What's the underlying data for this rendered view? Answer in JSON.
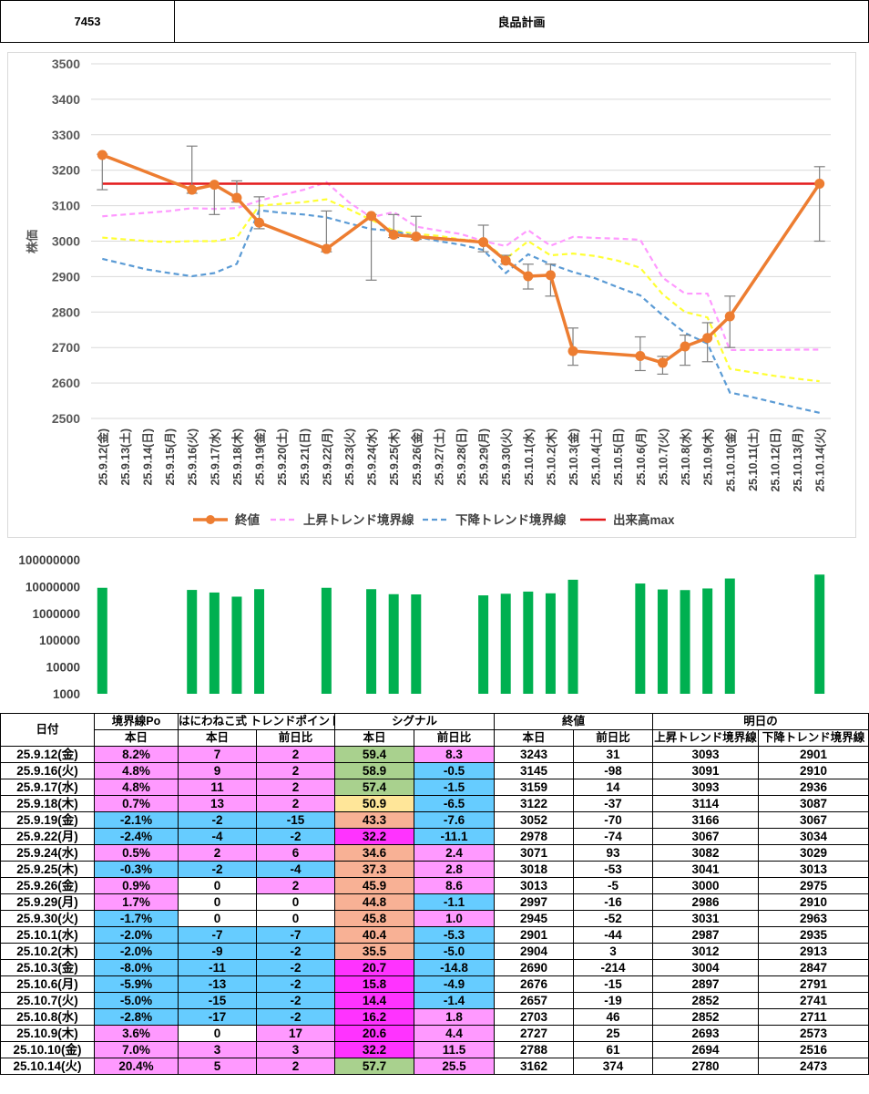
{
  "header": {
    "code": "7453",
    "name": "良品計画"
  },
  "colors": {
    "close": "#ed7d31",
    "upper": "#ff99ff",
    "lower": "#5b9bd5",
    "yellow": "#ffff33",
    "max": "#e31a1c",
    "bar": "#00b050",
    "grid": "#d9d9d9",
    "pink": "#ff99ff",
    "blue": "#66ccff",
    "green": "#a9d18e",
    "yellow_cell": "#ffe699",
    "salmon": "#f8b195",
    "magenta": "#ff33ff"
  },
  "chart_data": [
    {
      "type": "line",
      "ylabel": "株価",
      "ylim": [
        2500,
        3500
      ],
      "yticks": [
        "3500",
        "3400",
        "3300",
        "3200",
        "3100",
        "3000",
        "2900",
        "2800",
        "2700",
        "2600",
        "2500"
      ],
      "categories": [
        "25.9.12(金)",
        "25.9.13(土)",
        "25.9.14(日)",
        "25.9.15(月)",
        "25.9.16(火)",
        "25.9.17(水)",
        "25.9.18(木)",
        "25.9.19(金)",
        "25.9.20(土)",
        "25.9.21(日)",
        "25.9.22(月)",
        "25.9.23(火)",
        "25.9.24(水)",
        "25.9.25(木)",
        "25.9.26(金)",
        "25.9.27(土)",
        "25.9.28(日)",
        "25.9.29(月)",
        "25.9.30(火)",
        "25.10.1(水)",
        "25.10.2(木)",
        "25.10.3(金)",
        "25.10.4(土)",
        "25.10.5(日)",
        "25.10.6(月)",
        "25.10.7(火)",
        "25.10.8(水)",
        "25.10.9(木)",
        "25.10.10(金)",
        "25.10.11(土)",
        "25.10.12(日)",
        "25.10.13(月)",
        "25.10.14(火)"
      ],
      "series": [
        {
          "name": "終値",
          "values": [
            3243,
            null,
            null,
            null,
            3145,
            3159,
            3122,
            3052,
            null,
            null,
            2978,
            null,
            3071,
            3018,
            3013,
            null,
            null,
            2997,
            2945,
            2901,
            2904,
            2690,
            null,
            null,
            2676,
            2657,
            2703,
            2727,
            2788,
            null,
            null,
            null,
            3162
          ],
          "high": [
            3245,
            null,
            null,
            null,
            3268,
            3160,
            3170,
            3125,
            null,
            null,
            3085,
            null,
            3075,
            3075,
            3070,
            null,
            null,
            3045,
            2960,
            2935,
            2935,
            2755,
            null,
            null,
            2730,
            2675,
            2735,
            2770,
            2845,
            null,
            null,
            null,
            3210
          ],
          "low": [
            3145,
            null,
            null,
            null,
            3135,
            3075,
            3110,
            3035,
            null,
            null,
            2970,
            null,
            2890,
            3010,
            3005,
            null,
            null,
            2970,
            2935,
            2865,
            2845,
            2650,
            null,
            null,
            2635,
            2625,
            2650,
            2660,
            2700,
            null,
            null,
            null,
            3000
          ]
        },
        {
          "name": "上昇トレンド境界線",
          "values": [
            3070,
            3075,
            3080,
            3085,
            3093,
            3091,
            3093,
            3114,
            3130,
            3145,
            3166,
            3110,
            3067,
            3082,
            3041,
            3030,
            3020,
            3000,
            2986,
            3031,
            2987,
            3012,
            3009,
            3007,
            3004,
            2897,
            2852,
            2852,
            2693,
            2693,
            2693,
            2694,
            2694
          ]
        },
        {
          "name": "",
          "values": [
            3010,
            3005,
            3000,
            2998,
            3000,
            3000,
            3010,
            3100,
            3105,
            3110,
            3118,
            3090,
            3060,
            3030,
            3020,
            3015,
            3005,
            3000,
            2950,
            3000,
            2960,
            2965,
            2958,
            2945,
            2925,
            2850,
            2800,
            2785,
            2640,
            2630,
            2620,
            2612,
            2605
          ]
        },
        {
          "name": "下降トレンド境界線",
          "values": [
            2950,
            2935,
            2920,
            2910,
            2901,
            2910,
            2936,
            3087,
            3080,
            3075,
            3067,
            3050,
            3034,
            3029,
            3013,
            3000,
            2990,
            2975,
            2910,
            2963,
            2935,
            2913,
            2895,
            2870,
            2847,
            2791,
            2741,
            2711,
            2573,
            2560,
            2545,
            2530,
            2516
          ]
        },
        {
          "name": "出来高max",
          "values": [
            3162,
            3162,
            3162,
            3162,
            3162,
            3162,
            3162,
            3162,
            3162,
            3162,
            3162,
            3162,
            3162,
            3162,
            3162,
            3162,
            3162,
            3162,
            3162,
            3162,
            3162,
            3162,
            3162,
            3162,
            3162,
            3162,
            3162,
            3162,
            3162,
            3162,
            3162,
            3162,
            3162
          ]
        }
      ]
    },
    {
      "type": "bar",
      "scale": "log",
      "yticks": [
        "100000000",
        "10000000",
        "1000000",
        "100000",
        "10000",
        "1000"
      ],
      "ylim": [
        1000,
        100000000
      ],
      "categories": [
        "25.9.12(金)",
        "25.9.13(土)",
        "25.9.14(日)",
        "25.9.15(月)",
        "25.9.16(火)",
        "25.9.17(水)",
        "25.9.18(木)",
        "25.9.19(金)",
        "25.9.20(土)",
        "25.9.21(日)",
        "25.9.22(月)",
        "25.9.23(火)",
        "25.9.24(水)",
        "25.9.25(木)",
        "25.9.26(金)",
        "25.9.27(土)",
        "25.9.28(日)",
        "25.9.29(月)",
        "25.9.30(火)",
        "25.10.1(水)",
        "25.10.2(木)",
        "25.10.3(金)",
        "25.10.4(土)",
        "25.10.5(日)",
        "25.10.6(月)",
        "25.10.7(火)",
        "25.10.8(水)",
        "25.10.9(木)",
        "25.10.10(金)",
        "25.10.11(土)",
        "25.10.12(日)",
        "25.10.13(月)",
        "25.10.14(火)"
      ],
      "values": [
        9000000,
        null,
        null,
        null,
        7500000,
        6000000,
        4200000,
        8000000,
        null,
        null,
        9000000,
        null,
        8000000,
        5200000,
        5100000,
        null,
        null,
        4700000,
        5400000,
        6500000,
        5600000,
        18000000,
        null,
        null,
        13000000,
        7800000,
        7400000,
        8500000,
        20000000,
        null,
        null,
        null,
        28000000
      ]
    }
  ],
  "legend": [
    "終値",
    "上昇トレンド境界線",
    "下降トレンド境界線",
    "出来高max"
  ],
  "table": {
    "group_headers": [
      "日付",
      "境界線Po",
      "はにわねこ式 トレンドポイント",
      "シグナル",
      "終値",
      "明日の"
    ],
    "sub_headers": [
      "本日",
      "本日",
      "前日比",
      "本日",
      "前日比",
      "本日",
      "前日比",
      "上昇トレンド境界線",
      "下降トレンド境界線"
    ],
    "rows": [
      [
        "25.9.12(金)",
        "8.2%",
        "7",
        "2",
        "59.4",
        "8.3",
        "3243",
        "31",
        "3093",
        "2901"
      ],
      [
        "25.9.16(火)",
        "4.8%",
        "9",
        "2",
        "58.9",
        "-0.5",
        "3145",
        "-98",
        "3091",
        "2910"
      ],
      [
        "25.9.17(水)",
        "4.8%",
        "11",
        "2",
        "57.4",
        "-1.5",
        "3159",
        "14",
        "3093",
        "2936"
      ],
      [
        "25.9.18(木)",
        "0.7%",
        "13",
        "2",
        "50.9",
        "-6.5",
        "3122",
        "-37",
        "3114",
        "3087"
      ],
      [
        "25.9.19(金)",
        "-2.1%",
        "-2",
        "-15",
        "43.3",
        "-7.6",
        "3052",
        "-70",
        "3166",
        "3067"
      ],
      [
        "25.9.22(月)",
        "-2.4%",
        "-4",
        "-2",
        "32.2",
        "-11.1",
        "2978",
        "-74",
        "3067",
        "3034"
      ],
      [
        "25.9.24(水)",
        "0.5%",
        "2",
        "6",
        "34.6",
        "2.4",
        "3071",
        "93",
        "3082",
        "3029"
      ],
      [
        "25.9.25(木)",
        "-0.3%",
        "-2",
        "-4",
        "37.3",
        "2.8",
        "3018",
        "-53",
        "3041",
        "3013"
      ],
      [
        "25.9.26(金)",
        "0.9%",
        "0",
        "2",
        "45.9",
        "8.6",
        "3013",
        "-5",
        "3000",
        "2975"
      ],
      [
        "25.9.29(月)",
        "1.7%",
        "0",
        "0",
        "44.8",
        "-1.1",
        "2997",
        "-16",
        "2986",
        "2910"
      ],
      [
        "25.9.30(火)",
        "-1.7%",
        "0",
        "0",
        "45.8",
        "1.0",
        "2945",
        "-52",
        "3031",
        "2963"
      ],
      [
        "25.10.1(水)",
        "-2.0%",
        "-7",
        "-7",
        "40.4",
        "-5.3",
        "2901",
        "-44",
        "2987",
        "2935"
      ],
      [
        "25.10.2(木)",
        "-2.0%",
        "-9",
        "-2",
        "35.5",
        "-5.0",
        "2904",
        "3",
        "3012",
        "2913"
      ],
      [
        "25.10.3(金)",
        "-8.0%",
        "-11",
        "-2",
        "20.7",
        "-14.8",
        "2690",
        "-214",
        "3004",
        "2847"
      ],
      [
        "25.10.6(月)",
        "-5.9%",
        "-13",
        "-2",
        "15.8",
        "-4.9",
        "2676",
        "-15",
        "2897",
        "2791"
      ],
      [
        "25.10.7(火)",
        "-5.0%",
        "-15",
        "-2",
        "14.4",
        "-1.4",
        "2657",
        "-19",
        "2852",
        "2741"
      ],
      [
        "25.10.8(水)",
        "-2.8%",
        "-17",
        "-2",
        "16.2",
        "1.8",
        "2703",
        "46",
        "2852",
        "2711"
      ],
      [
        "25.10.9(木)",
        "3.6%",
        "0",
        "17",
        "20.6",
        "4.4",
        "2727",
        "25",
        "2693",
        "2573"
      ],
      [
        "25.10.10(金)",
        "7.0%",
        "3",
        "3",
        "32.2",
        "11.5",
        "2788",
        "61",
        "2694",
        "2516"
      ],
      [
        "25.10.14(火)",
        "20.4%",
        "5",
        "2",
        "57.7",
        "25.5",
        "3162",
        "374",
        "2780",
        "2473"
      ]
    ],
    "row_colors": [
      [
        "pink",
        "pink",
        "pink",
        "green",
        "pink",
        "white",
        "pink"
      ],
      [
        "pink",
        "pink",
        "pink",
        "green",
        "blue",
        "white",
        "blue"
      ],
      [
        "pink",
        "pink",
        "pink",
        "green",
        "blue",
        "white",
        "pink"
      ],
      [
        "pink",
        "pink",
        "pink",
        "yellow",
        "blue",
        "white",
        "blue"
      ],
      [
        "blue",
        "blue",
        "blue",
        "salmon",
        "blue",
        "white",
        "blue"
      ],
      [
        "blue",
        "blue",
        "blue",
        "magenta",
        "blue",
        "white",
        "blue"
      ],
      [
        "pink",
        "pink",
        "pink",
        "salmon",
        "pink",
        "white",
        "pink"
      ],
      [
        "blue",
        "blue",
        "blue",
        "salmon",
        "pink",
        "white",
        "blue"
      ],
      [
        "pink",
        "white",
        "pink",
        "salmon",
        "pink",
        "white",
        "blue"
      ],
      [
        "pink",
        "white",
        "white",
        "salmon",
        "blue",
        "white",
        "blue"
      ],
      [
        "blue",
        "white",
        "white",
        "salmon",
        "pink",
        "white",
        "blue"
      ],
      [
        "blue",
        "blue",
        "blue",
        "salmon",
        "blue",
        "white",
        "blue"
      ],
      [
        "blue",
        "blue",
        "blue",
        "salmon",
        "blue",
        "white",
        "pink"
      ],
      [
        "blue",
        "blue",
        "blue",
        "magenta",
        "blue",
        "white",
        "blue"
      ],
      [
        "blue",
        "blue",
        "blue",
        "magenta",
        "blue",
        "white",
        "blue"
      ],
      [
        "blue",
        "blue",
        "blue",
        "magenta",
        "blue",
        "white",
        "blue"
      ],
      [
        "blue",
        "blue",
        "blue",
        "magenta",
        "pink",
        "white",
        "pink"
      ],
      [
        "pink",
        "white",
        "pink",
        "magenta",
        "pink",
        "white",
        "pink"
      ],
      [
        "pink",
        "pink",
        "pink",
        "magenta",
        "pink",
        "white",
        "pink"
      ],
      [
        "pink",
        "pink",
        "pink",
        "green",
        "pink",
        "white",
        "pink"
      ]
    ]
  }
}
